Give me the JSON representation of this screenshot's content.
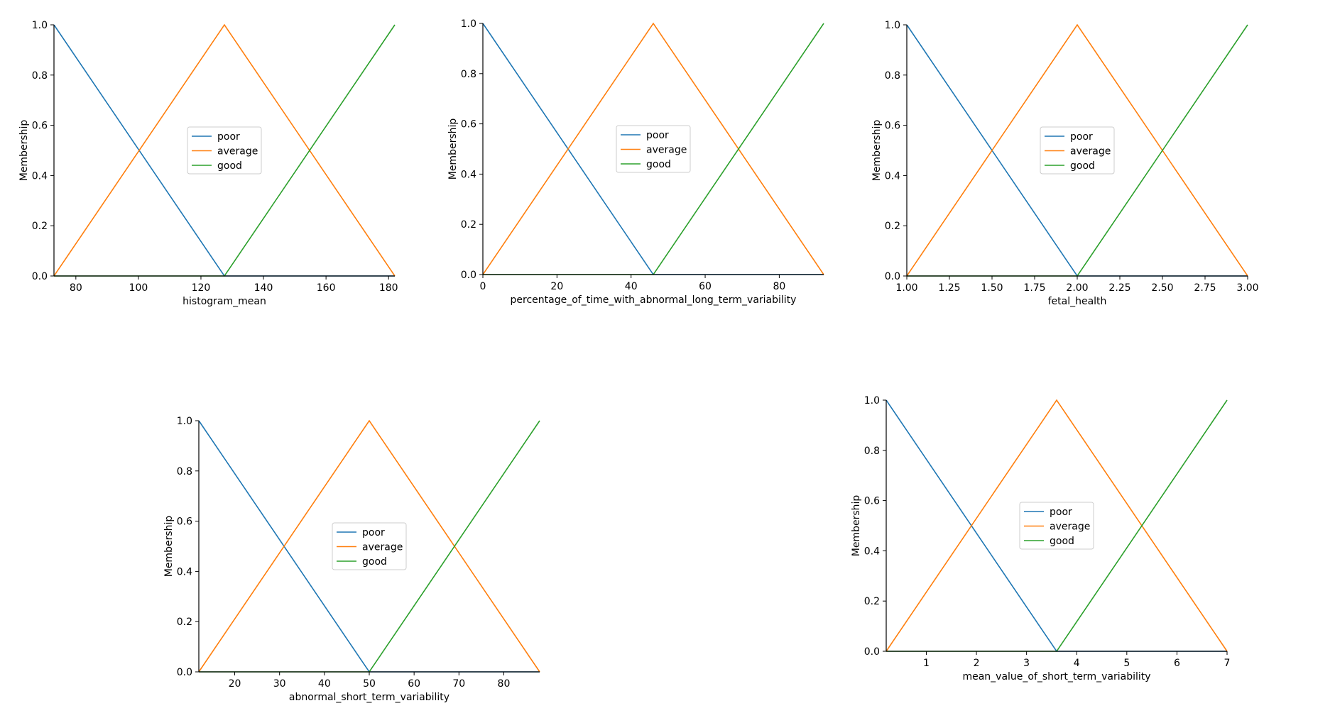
{
  "colors": {
    "poor": "#1f77b4",
    "average": "#ff7f0e",
    "good": "#2ca02c"
  },
  "chart_data": [
    {
      "type": "line",
      "title": "",
      "xlabel": "histogram_mean",
      "ylabel": "Membership",
      "xlim": [
        73,
        182
      ],
      "ylim": [
        0,
        1
      ],
      "xticks": [
        80,
        100,
        120,
        140,
        160,
        180
      ],
      "xtick_labels": [
        "80",
        "100",
        "120",
        "140",
        "160",
        "180"
      ],
      "yticks": [
        0,
        0.2,
        0.4,
        0.6,
        0.8,
        1.0
      ],
      "ytick_labels": [
        "0.0",
        "0.2",
        "0.4",
        "0.6",
        "0.8",
        "1.0"
      ],
      "legend_position": "center",
      "grid": false,
      "series": [
        {
          "name": "poor",
          "color": "#1f77b4",
          "x": [
            73,
            127.5,
            182
          ],
          "y": [
            1,
            0,
            0
          ]
        },
        {
          "name": "average",
          "color": "#ff7f0e",
          "x": [
            73,
            127.5,
            182
          ],
          "y": [
            0,
            1,
            0
          ]
        },
        {
          "name": "good",
          "color": "#2ca02c",
          "x": [
            73,
            127.5,
            182
          ],
          "y": [
            0,
            0,
            1
          ]
        }
      ]
    },
    {
      "type": "line",
      "title": "",
      "xlabel": "percentage_of_time_with_abnormal_long_term_variability",
      "ylabel": "Membership",
      "xlim": [
        0,
        92
      ],
      "ylim": [
        0,
        1
      ],
      "xticks": [
        0,
        20,
        40,
        60,
        80
      ],
      "xtick_labels": [
        "0",
        "20",
        "40",
        "60",
        "80"
      ],
      "yticks": [
        0,
        0.2,
        0.4,
        0.6,
        0.8,
        1.0
      ],
      "ytick_labels": [
        "0.0",
        "0.2",
        "0.4",
        "0.6",
        "0.8",
        "1.0"
      ],
      "legend_position": "center",
      "grid": false,
      "series": [
        {
          "name": "poor",
          "color": "#1f77b4",
          "x": [
            0,
            46,
            92
          ],
          "y": [
            1,
            0,
            0
          ]
        },
        {
          "name": "average",
          "color": "#ff7f0e",
          "x": [
            0,
            46,
            92
          ],
          "y": [
            0,
            1,
            0
          ]
        },
        {
          "name": "good",
          "color": "#2ca02c",
          "x": [
            0,
            46,
            92
          ],
          "y": [
            0,
            0,
            1
          ]
        }
      ]
    },
    {
      "type": "line",
      "title": "",
      "xlabel": "fetal_health",
      "ylabel": "Membership",
      "xlim": [
        1,
        3
      ],
      "ylim": [
        0,
        1
      ],
      "xticks": [
        1,
        1.25,
        1.5,
        1.75,
        2,
        2.25,
        2.5,
        2.75,
        3
      ],
      "xtick_labels": [
        "1.00",
        "1.25",
        "1.50",
        "1.75",
        "2.00",
        "2.25",
        "2.50",
        "2.75",
        "3.00"
      ],
      "yticks": [
        0,
        0.2,
        0.4,
        0.6,
        0.8,
        1.0
      ],
      "ytick_labels": [
        "0.0",
        "0.2",
        "0.4",
        "0.6",
        "0.8",
        "1.0"
      ],
      "legend_position": "center",
      "grid": false,
      "series": [
        {
          "name": "poor",
          "color": "#1f77b4",
          "x": [
            1,
            2,
            3
          ],
          "y": [
            1,
            0,
            0
          ]
        },
        {
          "name": "average",
          "color": "#ff7f0e",
          "x": [
            1,
            2,
            3
          ],
          "y": [
            0,
            1,
            0
          ]
        },
        {
          "name": "good",
          "color": "#2ca02c",
          "x": [
            1,
            2,
            3
          ],
          "y": [
            0,
            0,
            1
          ]
        }
      ]
    },
    {
      "type": "line",
      "title": "",
      "xlabel": "abnormal_short_term_variability",
      "ylabel": "Membership",
      "xlim": [
        12,
        88
      ],
      "ylim": [
        0,
        1
      ],
      "xticks": [
        20,
        30,
        40,
        50,
        60,
        70,
        80
      ],
      "xtick_labels": [
        "20",
        "30",
        "40",
        "50",
        "60",
        "70",
        "80"
      ],
      "yticks": [
        0,
        0.2,
        0.4,
        0.6,
        0.8,
        1.0
      ],
      "ytick_labels": [
        "0.0",
        "0.2",
        "0.4",
        "0.6",
        "0.8",
        "1.0"
      ],
      "legend_position": "center",
      "grid": false,
      "series": [
        {
          "name": "poor",
          "color": "#1f77b4",
          "x": [
            12,
            50,
            88
          ],
          "y": [
            1,
            0,
            0
          ]
        },
        {
          "name": "average",
          "color": "#ff7f0e",
          "x": [
            12,
            50,
            88
          ],
          "y": [
            0,
            1,
            0
          ]
        },
        {
          "name": "good",
          "color": "#2ca02c",
          "x": [
            12,
            50,
            88
          ],
          "y": [
            0,
            0,
            1
          ]
        }
      ]
    },
    {
      "type": "line",
      "title": "",
      "xlabel": "mean_value_of_short_term_variability",
      "ylabel": "Membership",
      "xlim": [
        0.2,
        7
      ],
      "ylim": [
        0,
        1
      ],
      "xticks": [
        1,
        2,
        3,
        4,
        5,
        6,
        7
      ],
      "xtick_labels": [
        "1",
        "2",
        "3",
        "4",
        "5",
        "6",
        "7"
      ],
      "yticks": [
        0,
        0.2,
        0.4,
        0.6,
        0.8,
        1.0
      ],
      "ytick_labels": [
        "0.0",
        "0.2",
        "0.4",
        "0.6",
        "0.8",
        "1.0"
      ],
      "legend_position": "center",
      "grid": false,
      "series": [
        {
          "name": "poor",
          "color": "#1f77b4",
          "x": [
            0.2,
            3.6,
            7
          ],
          "y": [
            1,
            0,
            0
          ]
        },
        {
          "name": "average",
          "color": "#ff7f0e",
          "x": [
            0.2,
            3.6,
            7
          ],
          "y": [
            0,
            1,
            0
          ]
        },
        {
          "name": "good",
          "color": "#2ca02c",
          "x": [
            0.2,
            3.6,
            7
          ],
          "y": [
            0,
            0,
            1
          ]
        }
      ]
    }
  ]
}
